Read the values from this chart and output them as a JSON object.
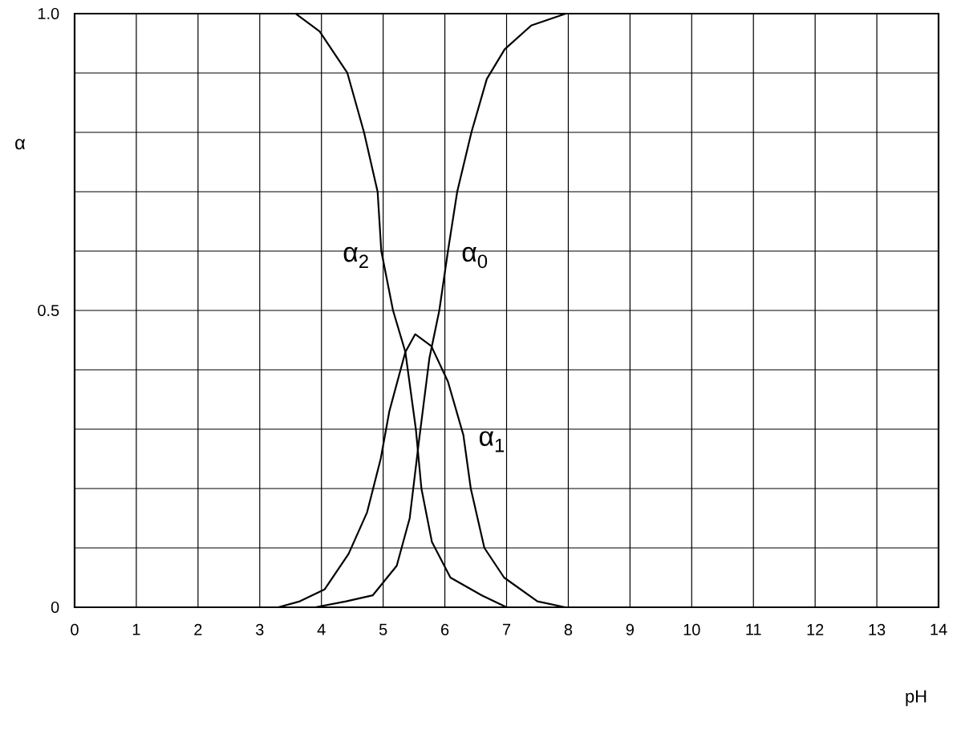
{
  "chart_data": {
    "type": "line",
    "xlabel": "pH",
    "ylabel": "α",
    "xlim": [
      0,
      14
    ],
    "ylim": [
      0,
      1
    ],
    "xticks": [
      0,
      1,
      2,
      3,
      4,
      5,
      6,
      7,
      8,
      9,
      10,
      11,
      12,
      13,
      14
    ],
    "yticks": [
      0,
      {
        "value": 0.1,
        "label": null
      },
      {
        "value": 0.2,
        "label": null
      },
      {
        "value": 0.3,
        "label": null
      },
      {
        "value": 0.4,
        "label": null
      },
      0.5,
      {
        "value": 0.6,
        "label": null
      },
      {
        "value": 0.7,
        "label": null
      },
      {
        "value": 0.8,
        "label": null
      },
      {
        "value": 0.9,
        "label": null
      },
      {
        "value": 1,
        "label": "1.0"
      }
    ],
    "grid": true,
    "line_style": "solid",
    "series": [
      {
        "name": "α$_{2}$",
        "color": "#000000",
        "x": [
          0,
          3.58,
          3.97,
          4.42,
          4.69,
          4.91,
          4.97,
          5.16,
          5.36,
          5.53,
          5.62,
          5.79,
          6.09,
          6.6,
          7.0,
          14
        ],
        "values": [
          1,
          1,
          0.97,
          0.9,
          0.8,
          0.7,
          0.6,
          0.5,
          0.43,
          0.3,
          0.2,
          0.11,
          0.05,
          0.02,
          0,
          0
        ]
      },
      {
        "name": "α$_{0}$",
        "color": "#000000",
        "x": [
          0,
          3.9,
          4.4,
          4.83,
          5.22,
          5.43,
          5.58,
          5.75,
          5.91,
          6.05,
          6.2,
          6.43,
          6.68,
          6.97,
          7.4,
          7.96,
          14
        ],
        "values": [
          0,
          0,
          0.01,
          0.02,
          0.07,
          0.15,
          0.28,
          0.42,
          0.5,
          0.6,
          0.7,
          0.8,
          0.89,
          0.94,
          0.98,
          1,
          1
        ]
      },
      {
        "name": "α$_{1}$",
        "color": "#000000",
        "x": [
          0,
          3.3,
          3.65,
          4.05,
          4.44,
          4.74,
          4.96,
          5.1,
          5.36,
          5.52,
          5.78,
          6.05,
          6.3,
          6.42,
          6.64,
          6.96,
          7.5,
          7.95,
          14
        ],
        "values": [
          0,
          0,
          0.01,
          0.03,
          0.09,
          0.16,
          0.25,
          0.33,
          0.43,
          0.46,
          0.44,
          0.38,
          0.29,
          0.2,
          0.1,
          0.05,
          0.01,
          0,
          0
        ]
      }
    ]
  }
}
